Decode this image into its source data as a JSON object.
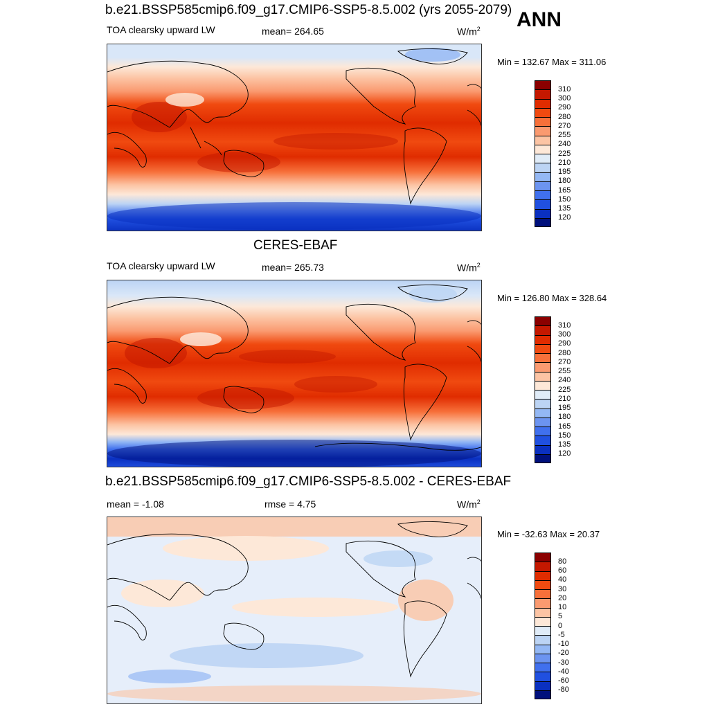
{
  "season": "ANN",
  "case_name": "b.e21.BSSP585cmip6.f09_g17.CMIP6-SSP5-8.5.002 (yrs 2055-2079)",
  "obs_title": "CERES-EBAF",
  "diff_title": "b.e21.BSSP585cmip6.f09_g17.CMIP6-SSP5-8.5.002 - CERES-EBAF",
  "unit_base": "W/m",
  "unit_exp": "2",
  "panels": [
    {
      "variable": "TOA clearsky upward LW",
      "left_text": "TOA clearsky upward LW",
      "center_text": "mean= 264.65",
      "minmax": "Min = 132.67 Max = 311.06",
      "mean": 264.65,
      "min": 132.67,
      "max": 311.06
    },
    {
      "variable": "TOA clearsky upward LW",
      "left_text": "TOA clearsky upward LW",
      "center_text": "mean= 265.73",
      "minmax": "Min = 126.80 Max = 328.64",
      "mean": 265.73,
      "min": 126.8,
      "max": 328.64
    },
    {
      "left_text": "mean =  -1.08",
      "center_text": "rmse =   4.75",
      "minmax": "Min = -32.63 Max =  20.37",
      "mean": -1.08,
      "rmse": 4.75,
      "min": -32.63,
      "max": 20.37
    }
  ],
  "colorbars": {
    "absolute": {
      "labels": [
        "310",
        "300",
        "290",
        "280",
        "270",
        "255",
        "240",
        "225",
        "210",
        "195",
        "180",
        "165",
        "150",
        "135",
        "120"
      ],
      "colors": [
        "#8b0000",
        "#c41800",
        "#e02c00",
        "#f04a10",
        "#f7703a",
        "#fa9a70",
        "#fcc4a4",
        "#fde8d8",
        "#e0ecf8",
        "#bcd4f4",
        "#94b8f4",
        "#6c94f0",
        "#4070ee",
        "#2050e0",
        "#0a30c0",
        "#00107c"
      ]
    },
    "difference": {
      "labels": [
        "80",
        "60",
        "40",
        "30",
        "20",
        "10",
        "5",
        "0",
        "-5",
        "-10",
        "-20",
        "-30",
        "-40",
        "-60",
        "-80"
      ],
      "colors": [
        "#8b0000",
        "#c41800",
        "#e02c00",
        "#f04a10",
        "#f7703a",
        "#fa9a70",
        "#fcc4a4",
        "#fde8d8",
        "#e0ecf8",
        "#bcd4f4",
        "#94b8f4",
        "#6c94f0",
        "#4070ee",
        "#2050e0",
        "#0a30c0",
        "#00107c"
      ]
    }
  },
  "chart_data": [
    {
      "type": "heatmap",
      "title": "b.e21.BSSP585cmip6.f09_g17.CMIP6-SSP5-8.5.002 (yrs 2055-2079)",
      "variable": "TOA clearsky upward LW",
      "units": "W/m2",
      "mean": 264.65,
      "min": 132.67,
      "max": 311.06,
      "projection": "cylindrical equidistant, global, centered on Pacific",
      "contour_levels": [
        120,
        135,
        150,
        165,
        180,
        195,
        210,
        225,
        240,
        255,
        270,
        280,
        290,
        300,
        310
      ]
    },
    {
      "type": "heatmap",
      "title": "CERES-EBAF",
      "variable": "TOA clearsky upward LW",
      "units": "W/m2",
      "mean": 265.73,
      "min": 126.8,
      "max": 328.64,
      "contour_levels": [
        120,
        135,
        150,
        165,
        180,
        195,
        210,
        225,
        240,
        255,
        270,
        280,
        290,
        300,
        310
      ]
    },
    {
      "type": "heatmap",
      "title": "b.e21.BSSP585cmip6.f09_g17.CMIP6-SSP5-8.5.002 - CERES-EBAF",
      "units": "W/m2",
      "mean": -1.08,
      "rmse": 4.75,
      "min": -32.63,
      "max": 20.37,
      "contour_levels": [
        -80,
        -60,
        -40,
        -30,
        -20,
        -10,
        -5,
        0,
        5,
        10,
        20,
        30,
        40,
        60,
        80
      ]
    }
  ]
}
